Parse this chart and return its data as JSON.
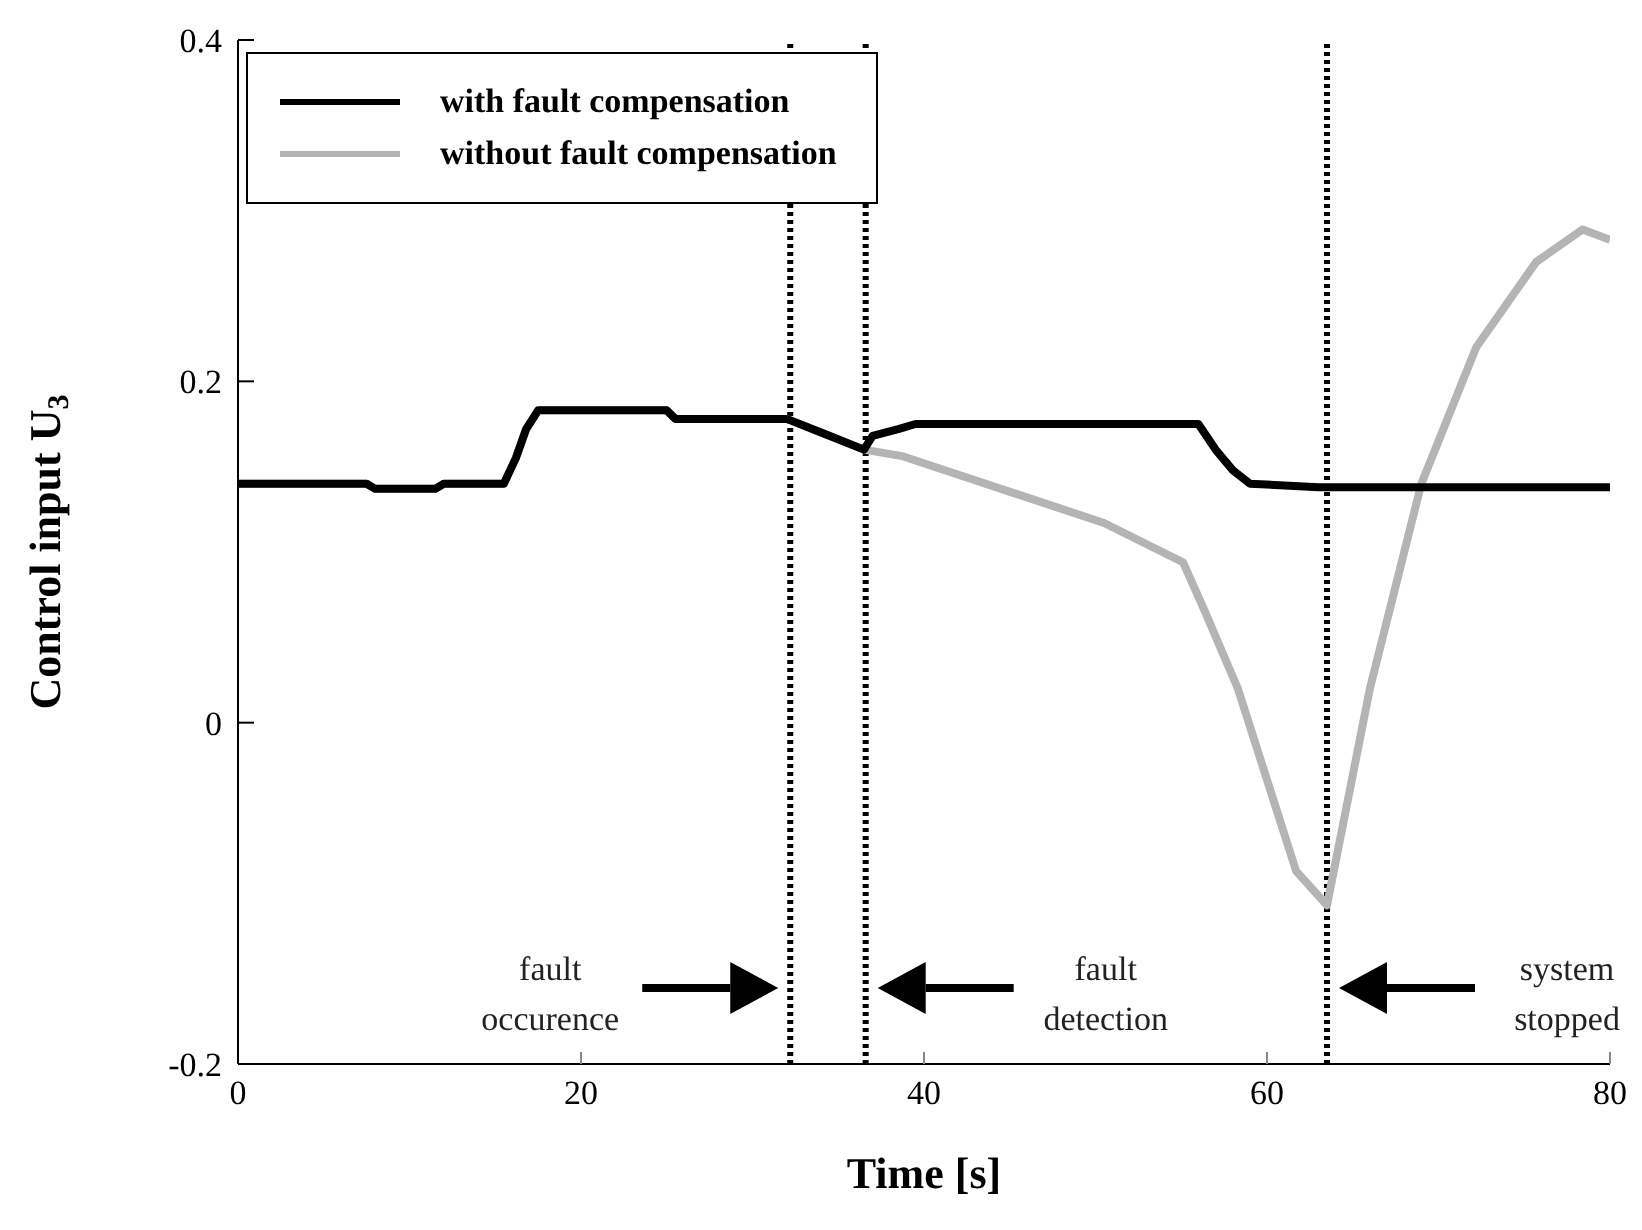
{
  "chart_data": {
    "type": "line",
    "xlabel": "Time [s]",
    "ylabel": "Control input U$_{3}$",
    "xlim": [
      0,
      80
    ],
    "xticks": [
      0,
      20,
      40,
      60,
      80
    ],
    "ylim": [
      -0.2,
      0.4
    ],
    "yticks": [
      -0.2,
      0,
      0.2,
      0.4
    ],
    "legend": "top left",
    "line_style": "solid",
    "marker": "none",
    "series": [
      {
        "name": "with fault compensation",
        "color": "#000000",
        "x": [
          0,
          7.5,
          8,
          11.5,
          12,
          15.5,
          16.2,
          16.8,
          17.5,
          25,
          25.5,
          32,
          34,
          36.5,
          37,
          38.5,
          39.5,
          56,
          57,
          58,
          59,
          63,
          80
        ],
        "values": [
          0.14,
          0.14,
          0.137,
          0.137,
          0.14,
          0.14,
          0.155,
          0.172,
          0.183,
          0.183,
          0.178,
          0.178,
          0.17,
          0.16,
          0.168,
          0.172,
          0.175,
          0.175,
          0.16,
          0.148,
          0.14,
          0.138,
          0.138
        ]
      },
      {
        "name": "without fault compensation",
        "color": "#b4b4b4",
        "x": [
          0,
          7.5,
          8,
          11.5,
          12,
          15.5,
          16.2,
          16.8,
          17.5,
          25,
          25.5,
          32,
          34,
          36.5,
          38.8,
          50.5,
          55.1,
          56.3,
          58.3,
          61.7,
          63.5,
          66,
          69,
          72.2,
          75.7,
          78.4,
          80
        ],
        "values": [
          0.14,
          0.14,
          0.137,
          0.137,
          0.14,
          0.14,
          0.155,
          0.172,
          0.183,
          0.183,
          0.178,
          0.178,
          0.17,
          0.16,
          0.156,
          0.117,
          0.094,
          0.067,
          0.02,
          -0.087,
          -0.107,
          0.02,
          0.14,
          0.22,
          0.27,
          0.289,
          0.283
        ]
      }
    ],
    "ref_lines": [
      {
        "axis": "x",
        "value": 32.2,
        "color": "#000000",
        "line_style": "dotted"
      },
      {
        "axis": "x",
        "value": 36.6,
        "color": "#000000",
        "line_style": "dotted"
      },
      {
        "axis": "x",
        "value": 63.5,
        "color": "#000000",
        "line_style": "dotted"
      }
    ],
    "annotations": [
      "fault occurence",
      "fault detection",
      "system stopped"
    ]
  }
}
